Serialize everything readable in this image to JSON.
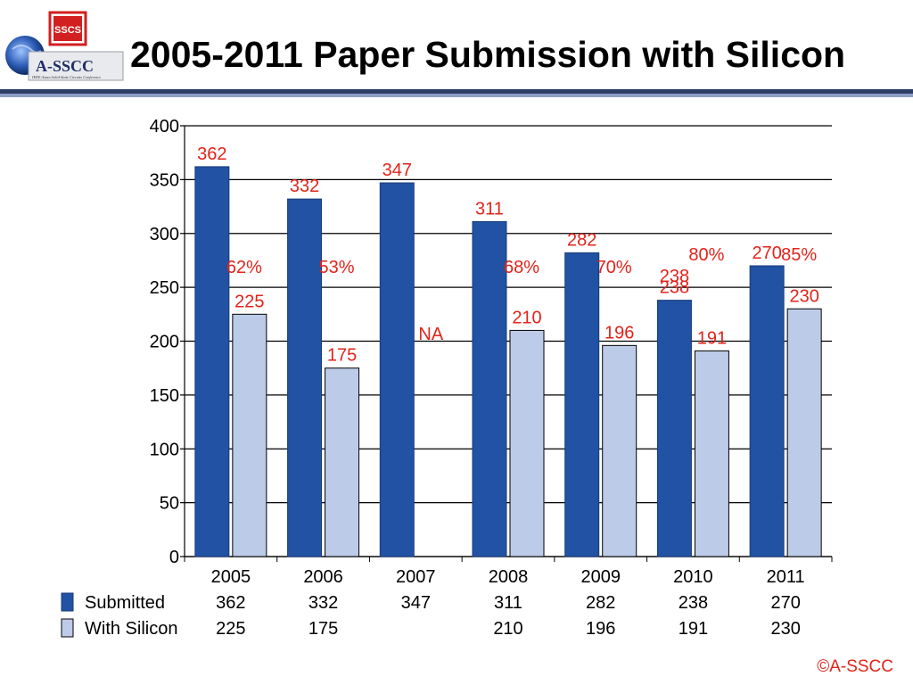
{
  "header": {
    "title": "2005-2011 Paper Submission with Silicon",
    "logo_text": "A-SSCC",
    "logo_sub": "IEEE Asian Solid-State Circuits Conference",
    "badge_text": "SSCS"
  },
  "footer": {
    "copyright": "©A-SSCC"
  },
  "colors": {
    "submitted": "#2152a3",
    "with_silicon": "#bccbe8",
    "label_red": "#e2231a",
    "title_bar": "#2f3e67"
  },
  "chart_data": {
    "type": "bar",
    "categories": [
      "2005",
      "2006",
      "2007",
      "2008",
      "2009",
      "2010",
      "2011"
    ],
    "series": [
      {
        "name": "Submitted",
        "values": [
          362,
          332,
          347,
          311,
          282,
          238,
          270
        ],
        "labels": [
          "362",
          "332",
          "347",
          "311",
          "282",
          "238",
          "270"
        ]
      },
      {
        "name": "With Silicon",
        "values": [
          225,
          175,
          null,
          210,
          196,
          191,
          230
        ],
        "labels": [
          "225",
          "175",
          "",
          "210",
          "196",
          "191",
          "230"
        ]
      }
    ],
    "annotations": {
      "percent": [
        "62%",
        "53%",
        "",
        "68%",
        "70%",
        "80%",
        "85%"
      ],
      "na_label": "NA",
      "extra_2010_label": "238"
    },
    "yticks": [
      "0",
      "50",
      "100",
      "150",
      "200",
      "250",
      "300",
      "350",
      "400"
    ],
    "ylim": [
      0,
      400
    ],
    "grid": true,
    "legend": "data-table below chart",
    "table": {
      "rows": [
        {
          "label": "Submitted",
          "cells": [
            "362",
            "332",
            "347",
            "311",
            "282",
            "238",
            "270"
          ]
        },
        {
          "label": "With Silicon",
          "cells": [
            "225",
            "175",
            "",
            "210",
            "196",
            "191",
            "230"
          ]
        }
      ]
    }
  }
}
